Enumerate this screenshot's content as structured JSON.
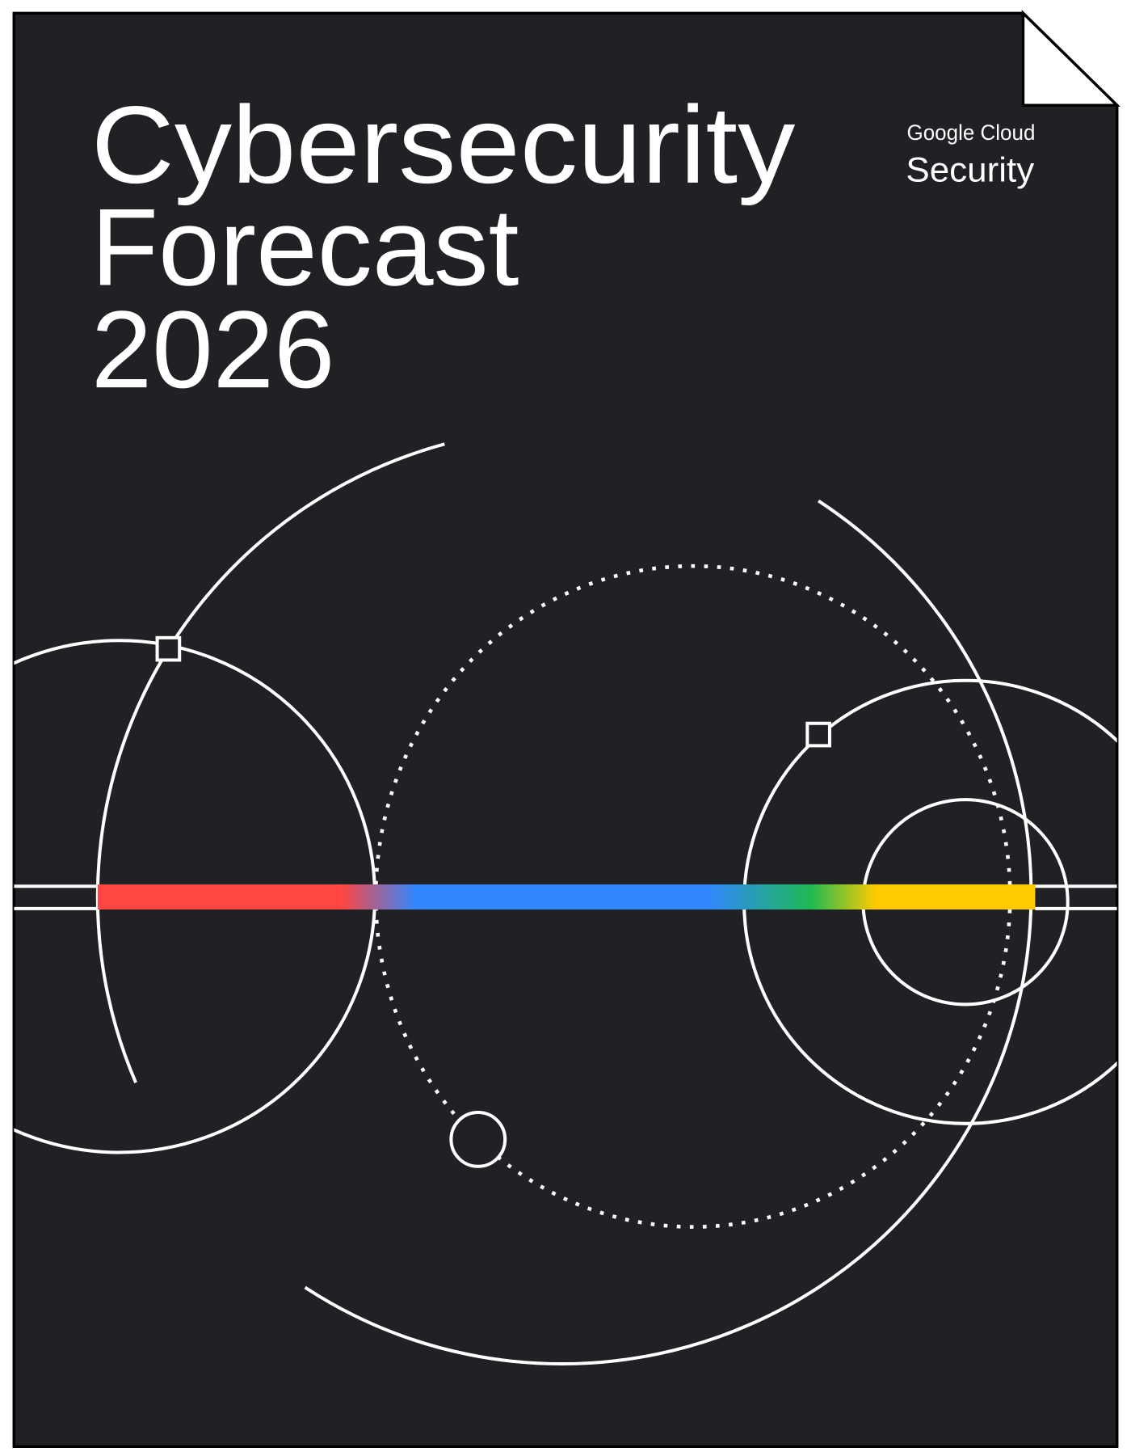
{
  "cover": {
    "title_lines": [
      "Cybersecurity",
      "Forecast",
      "2026"
    ],
    "brand": {
      "line1": "Google Cloud",
      "line2": "Security"
    }
  },
  "colors": {
    "background": "#202124",
    "lines": "#ffffff",
    "bar_red": "#ff4641",
    "bar_blue": "#3186ff",
    "bar_green": "#1eb955",
    "bar_yellow": "#ffcb00"
  },
  "icons": {
    "page_corner": "folded-corner-icon"
  }
}
